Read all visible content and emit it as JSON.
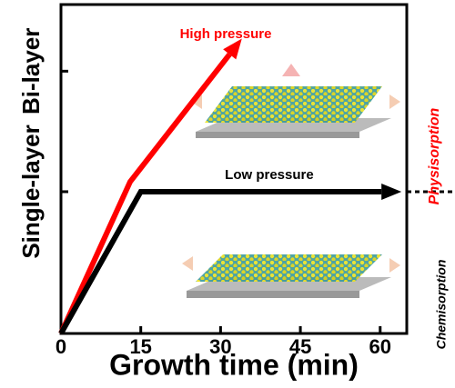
{
  "chart_data": {
    "type": "line",
    "xlabel": "Growth time (min)",
    "xlim": [
      0,
      65
    ],
    "xticks": [
      0,
      15,
      30,
      45,
      60
    ],
    "ylim": [
      0,
      2.32
    ],
    "yticks": [
      {
        "value": 1,
        "label": "Single-layer"
      },
      {
        "value": 1.85,
        "label": "Bi-layer"
      }
    ],
    "series": [
      {
        "name": "High pressure",
        "color": "#ff0000",
        "x": [
          0,
          13,
          34
        ],
        "values": [
          0,
          1.07,
          2.08
        ]
      },
      {
        "name": "Low pressure",
        "color": "#000000",
        "x": [
          0,
          15,
          64
        ],
        "values": [
          0,
          1,
          1
        ]
      }
    ],
    "annotations": [
      "Physisorption",
      "Chemisorption"
    ]
  }
}
